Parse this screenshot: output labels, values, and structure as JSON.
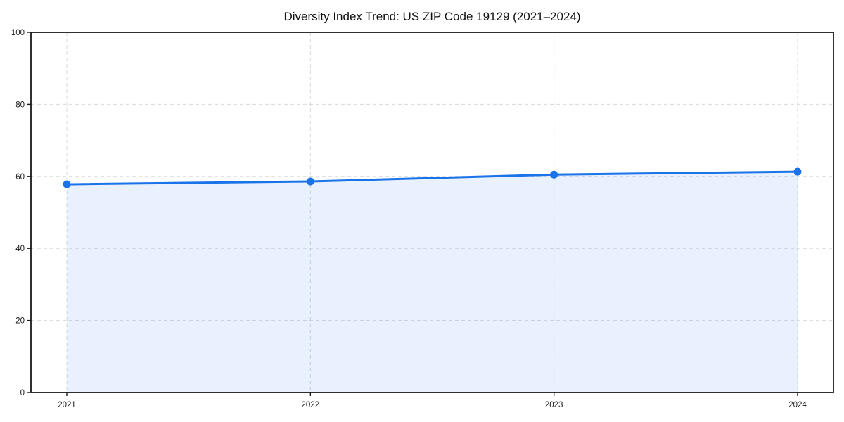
{
  "page": {
    "background": "#ffffff"
  },
  "chart_data": {
    "type": "area",
    "title": "Diversity Index Trend: US ZIP Code 19129 (2021–2024)",
    "categories": [
      "2021",
      "2022",
      "2023",
      "2024"
    ],
    "series": [
      {
        "name": "Diversity Index",
        "values": [
          57.8,
          58.6,
          60.5,
          61.3
        ]
      }
    ],
    "xlabel": "",
    "ylabel": "",
    "ylim": [
      0,
      100
    ],
    "yticks": [
      0,
      20,
      40,
      60,
      80,
      100
    ],
    "grid": true,
    "grid_style": "dashed",
    "legend": "none",
    "marker": "circle",
    "colors": {
      "line": "#1a73e8",
      "marker": "#1a73e8",
      "fill": "#1a73e8",
      "fill_opacity": 0.1,
      "grid": "#d9d9d9",
      "frame": "#1a1a1a",
      "tick": "#1a1a1a",
      "text": "#1a1a1a",
      "background": "#ffffff"
    }
  }
}
